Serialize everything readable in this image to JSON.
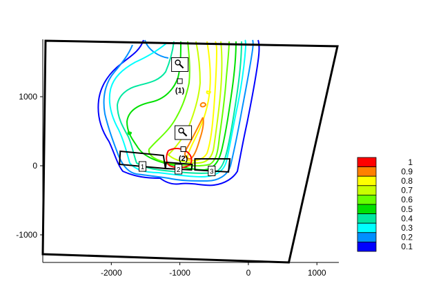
{
  "chart_data": {
    "type": "contour",
    "title": "",
    "xlabel": "",
    "ylabel": "",
    "xlim": [
      -3000,
      1320
    ],
    "ylim": [
      -1400,
      1830
    ],
    "x_ticks": [
      -2000,
      -1000,
      0,
      1000
    ],
    "x_tick_labels": [
      "-2000",
      "-1000",
      "0",
      "1000"
    ],
    "y_ticks": [
      -1000,
      0,
      1000
    ],
    "y_tick_labels": [
      "-1000",
      "0",
      "1000"
    ],
    "grid": false,
    "legend_position": "right",
    "levels": [
      {
        "label": "1",
        "value": 1.0,
        "color": "#ff0000"
      },
      {
        "label": "0.9",
        "value": 0.9,
        "color": "#ff8000"
      },
      {
        "label": "0.8",
        "value": 0.8,
        "color": "#ffff00"
      },
      {
        "label": "0.7",
        "value": 0.7,
        "color": "#c8ff00"
      },
      {
        "label": "0.6",
        "value": 0.6,
        "color": "#66ff00"
      },
      {
        "label": "0.5",
        "value": 0.5,
        "color": "#00e000"
      },
      {
        "label": "0.4",
        "value": 0.4,
        "color": "#00e8a0"
      },
      {
        "label": "0.3",
        "value": 0.3,
        "color": "#00ffff"
      },
      {
        "label": "0.2",
        "value": 0.2,
        "color": "#0090ff"
      },
      {
        "label": "0.1",
        "value": 0.1,
        "color": "#0000ff"
      }
    ],
    "domain_boundary": [
      [
        -2960,
        1810
      ],
      [
        1300,
        1730
      ],
      [
        590,
        -1400
      ],
      [
        -3000,
        -1280
      ]
    ],
    "sources": [
      {
        "label": "1",
        "polygon": [
          [
            -1870,
            210
          ],
          [
            -1240,
            150
          ],
          [
            -1210,
            -40
          ],
          [
            -1880,
            20
          ]
        ]
      },
      {
        "label": "2",
        "polygon": [
          [
            -1200,
            50
          ],
          [
            -820,
            20
          ],
          [
            -830,
            -60
          ],
          [
            -1210,
            -40
          ]
        ]
      },
      {
        "label": "3",
        "polygon": [
          [
            -780,
            100
          ],
          [
            -270,
            100
          ],
          [
            -290,
            -90
          ],
          [
            -780,
            -60
          ]
        ]
      }
    ],
    "receptors": [
      {
        "label": "(1)",
        "x": -1000,
        "y": 1225
      },
      {
        "label": "(2)",
        "x": -950,
        "y": 240
      }
    ]
  }
}
